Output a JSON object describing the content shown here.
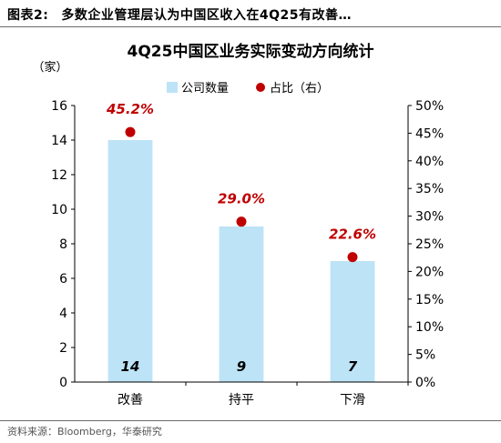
{
  "figure": {
    "label": "图表2:",
    "caption": "多数企业管理层认为中国区收入在4Q25有改善…",
    "source": "资料来源：Bloomberg，华泰研究"
  },
  "chart_data": {
    "type": "bar",
    "title": "4Q25中国区业务实际变动方向统计",
    "ylabel_left": "（家）",
    "categories": [
      "改善",
      "持平",
      "下滑"
    ],
    "series": [
      {
        "name": "公司数量",
        "axis": "left",
        "type": "bar",
        "values": [
          14,
          9,
          7
        ],
        "color": "#bde3f7"
      },
      {
        "name": "占比（右）",
        "axis": "right",
        "type": "scatter",
        "values": [
          45.2,
          29.0,
          22.6
        ],
        "color": "#c00000"
      }
    ],
    "bar_labels": [
      "14",
      "9",
      "7"
    ],
    "point_labels": [
      "45.2%",
      "29.0%",
      "22.6%"
    ],
    "ylim_left": [
      0,
      16
    ],
    "yticks_left": [
      "0",
      "2",
      "4",
      "6",
      "8",
      "10",
      "12",
      "14",
      "16"
    ],
    "ylim_right": [
      0,
      50
    ],
    "yticks_right": [
      "0%",
      "5%",
      "10%",
      "15%",
      "20%",
      "25%",
      "30%",
      "35%",
      "40%",
      "45%",
      "50%"
    ],
    "legend_position": "top-center",
    "grid": false
  }
}
